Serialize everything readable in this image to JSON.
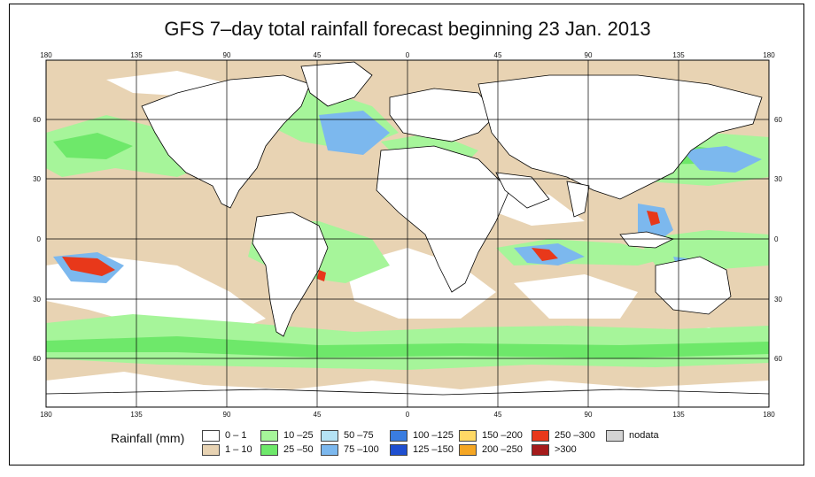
{
  "title": "GFS 7–day total rainfall forecast beginning 23 Jan. 2013",
  "lon_labels": [
    "180",
    "135",
    "90",
    "45",
    "0",
    "45",
    "90",
    "135",
    "180"
  ],
  "lat_labels": [
    "60",
    "30",
    "0",
    "30",
    "60"
  ],
  "legend": {
    "label": "Rainfall (mm)",
    "entries": [
      {
        "text": "0 – 1",
        "color": "#ffffff"
      },
      {
        "text": "1 – 10",
        "color": "#e8d3b3"
      },
      {
        "text": "10 –25",
        "color": "#a6f59a"
      },
      {
        "text": "25 –50",
        "color": "#6ee86a"
      },
      {
        "text": "50 –75",
        "color": "#b5e3f5"
      },
      {
        "text": "75 –100",
        "color": "#7cb8ee"
      },
      {
        "text": "100 –125",
        "color": "#3a7de0"
      },
      {
        "text": "125 –150",
        "color": "#1f4fd0"
      },
      {
        "text": "150 –200",
        "color": "#ffd966"
      },
      {
        "text": "200 –250",
        "color": "#f5a623"
      },
      {
        "text": "250 –300",
        "color": "#e8381a"
      },
      {
        "text": ">300",
        "color": "#a51b1b"
      },
      {
        "text": "nodata",
        "color": "#d3d3d3"
      }
    ]
  },
  "colors": {
    "ocean_base": "#e8d3b3",
    "land": "#ffffff",
    "border": "#000000"
  }
}
